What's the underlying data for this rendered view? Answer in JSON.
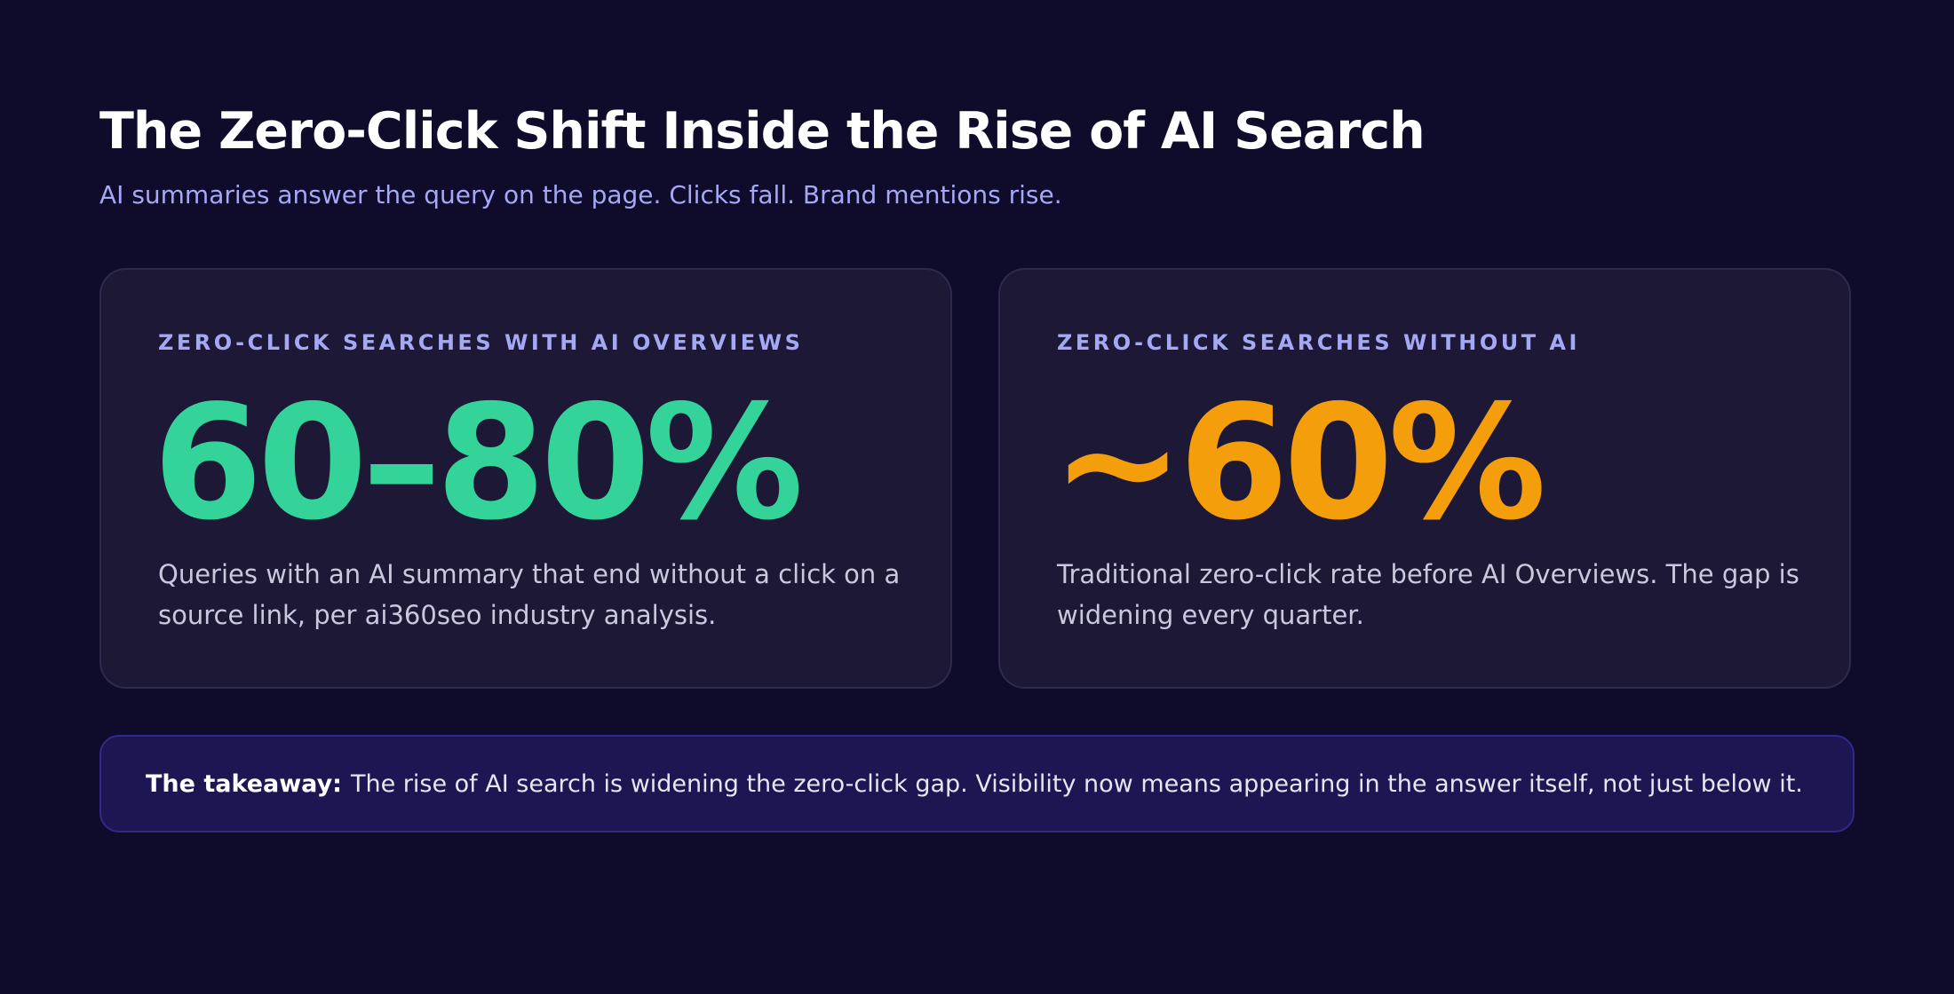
{
  "header": {
    "title": "The Zero-Click Shift Inside the Rise of AI Search",
    "subtitle": "AI summaries answer the query on the page. Clicks fall. Brand mentions rise."
  },
  "cards": [
    {
      "label": "ZERO-CLICK SEARCHES WITH AI OVERVIEWS",
      "value": "60–80%",
      "value_color": "#34d399",
      "description": "Queries with an AI summary that end without a click on a source link, per ai360seo industry analysis."
    },
    {
      "label": "ZERO-CLICK SEARCHES WITHOUT AI",
      "value": "~60%",
      "value_color": "#f59e0b",
      "description": "Traditional zero-click rate before AI Overviews. The gap is widening every quarter."
    }
  ],
  "takeaway": {
    "label": "The takeaway:",
    "text": "The rise of AI search is widening the zero-click gap. Visibility now means appearing in the answer itself, not just below it."
  },
  "colors": {
    "background": "#0e0b2b",
    "card_background": "#1c1836",
    "accent_label": "#a5a9f5",
    "takeaway_background": "#1c1653"
  }
}
